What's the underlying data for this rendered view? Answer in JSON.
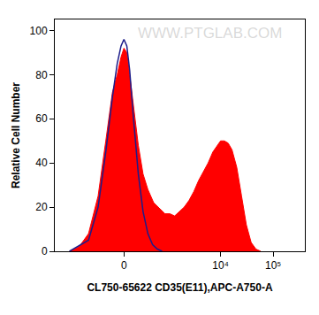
{
  "chart_data": {
    "type": "histogram",
    "x_label": "CL750-65622 CD35(E11),APC-A750-A",
    "y_label": "Relative Cell Number",
    "annotations": [
      "WWW.PTGLAB.COM"
    ],
    "xlim": [
      -3000,
      400000
    ],
    "xticks": [
      0,
      {
        "value": 10000,
        "label": "10⁴"
      },
      {
        "value": 100000,
        "label": "10⁵"
      }
    ],
    "ylim": [
      0,
      105
    ],
    "yticks": [
      0,
      20,
      40,
      60,
      80,
      100
    ],
    "grid": false,
    "series": [
      {
        "type": "area",
        "color": "#ff0000",
        "x": [
          -1571,
          -1022,
          -656,
          -405,
          -257,
          -153,
          -87,
          -37,
          0,
          37,
          74,
          126,
          196,
          274,
          365,
          497,
          686,
          856,
          1069,
          1326,
          1641,
          2027,
          2502,
          3090,
          3814,
          4701,
          5796,
          7146,
          8810,
          10000,
          11800,
          13950,
          16500,
          20350,
          25080,
          30920,
          38140,
          47040,
          57990
        ],
        "values": [
          0,
          2,
          8,
          25,
          50,
          72,
          80,
          88,
          92,
          90,
          80,
          65,
          48,
          35,
          28,
          22,
          19,
          17,
          17,
          16,
          18,
          20,
          23,
          27,
          32,
          36,
          40,
          45,
          48,
          50,
          50,
          49,
          46,
          38,
          25,
          12,
          4,
          1,
          0
        ]
      },
      {
        "type": "line",
        "color": "#1c1c8a",
        "x": [
          -1571,
          -656,
          -405,
          -257,
          -153,
          -87,
          -37,
          0,
          37,
          74,
          126,
          196,
          274,
          365,
          470,
          598,
          750
        ],
        "values": [
          0,
          5,
          20,
          45,
          70,
          85,
          93,
          96,
          93,
          82,
          60,
          35,
          18,
          8,
          3,
          1,
          0
        ]
      }
    ]
  }
}
